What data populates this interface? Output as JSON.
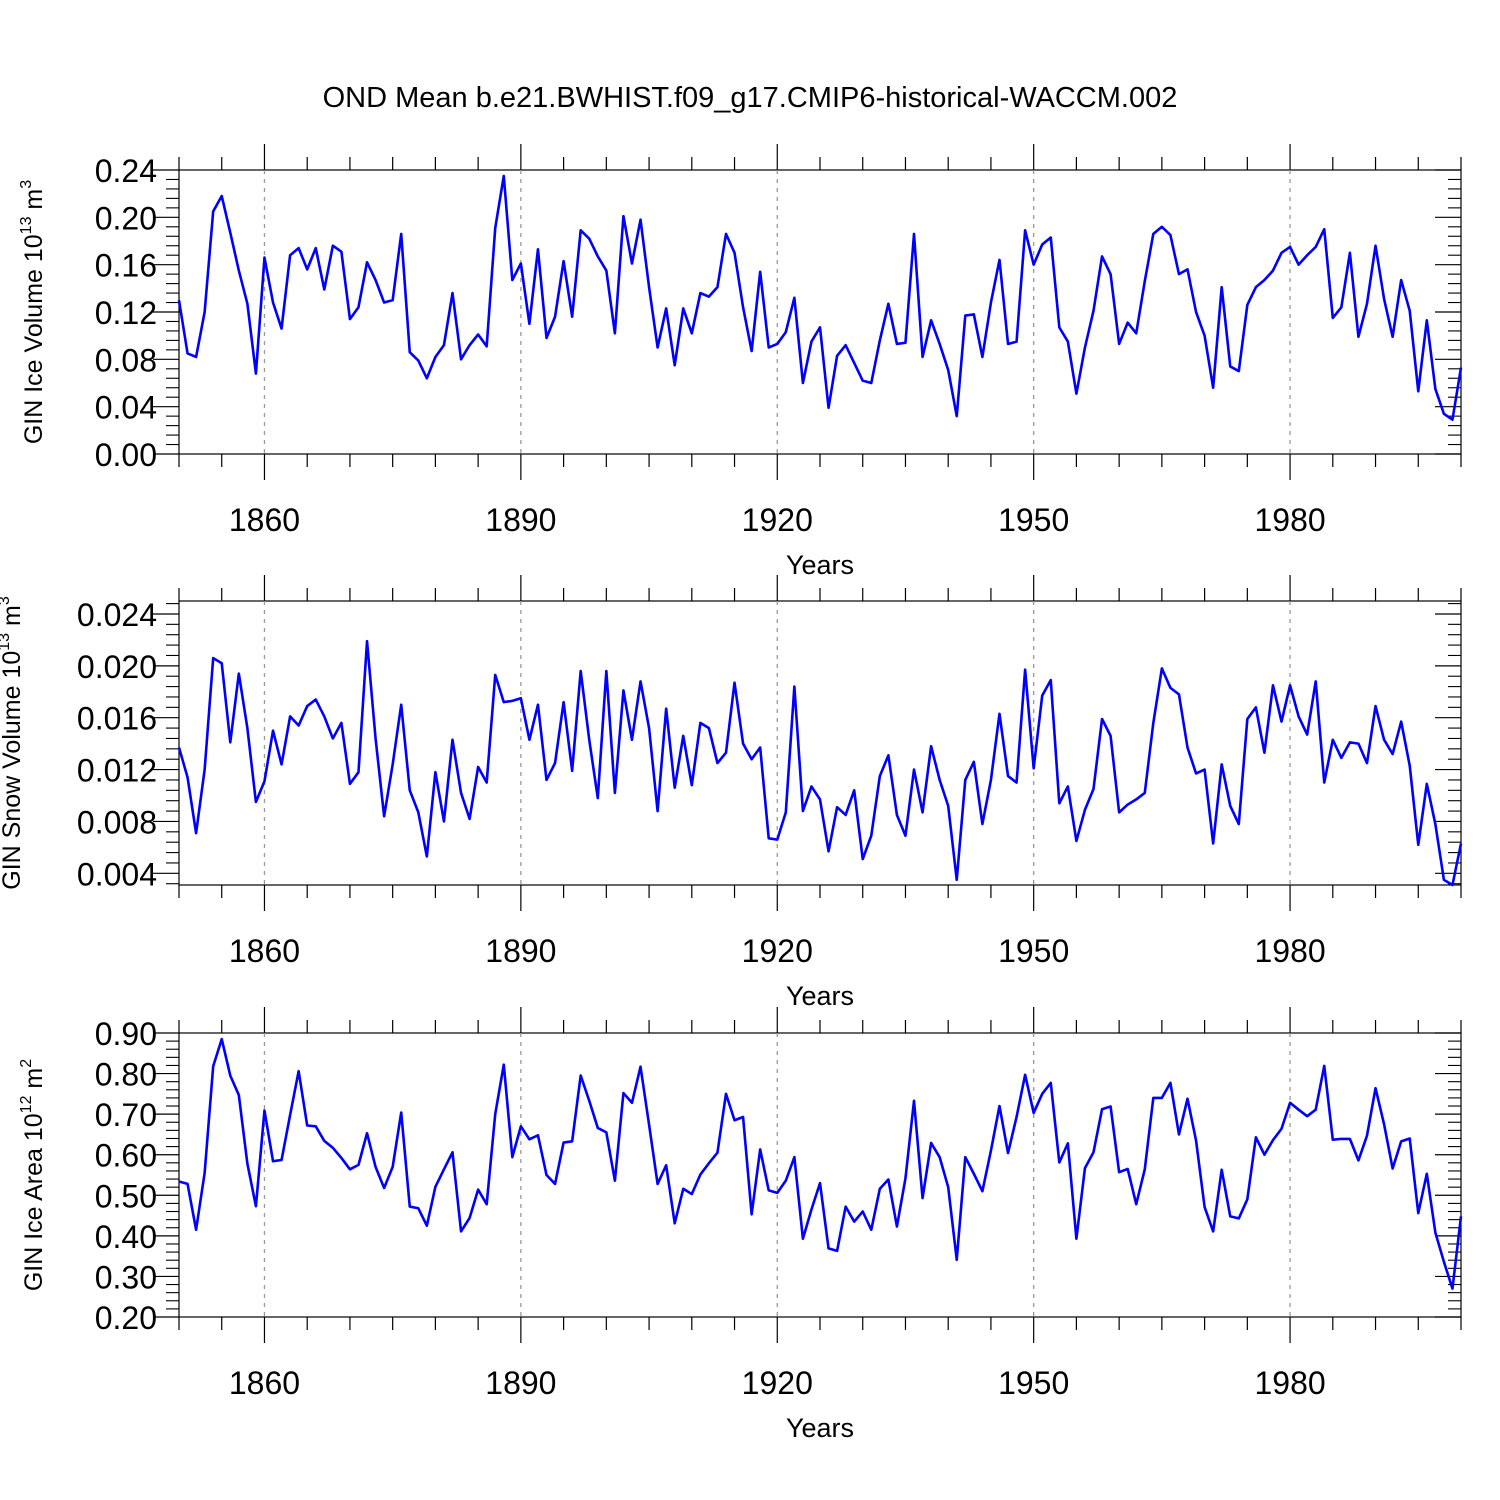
{
  "figure_title": "OND Mean b.e21.BWHIST.f09_g17.CMIP6-historical-WACCM.002",
  "colors": {
    "series": "#0000ff",
    "axes": "#000000",
    "grid": "#999999",
    "background": "#ffffff"
  },
  "chart_data": [
    {
      "type": "line",
      "title": "",
      "xlabel": "Years",
      "ylabel": {
        "text": "GIN Ice Volume 10",
        "exponent": "13",
        "unit": " m",
        "unit_exponent": "3"
      },
      "x_start": 1850,
      "x_step": 1,
      "xlim": [
        1850,
        2000
      ],
      "xticks": [
        1860,
        1890,
        1920,
        1950,
        1980
      ],
      "ylim": [
        0.0,
        0.24
      ],
      "yticks": [
        "0.00",
        "0.04",
        "0.08",
        "0.12",
        "0.16",
        "0.20",
        "0.24"
      ],
      "ytick_values": [
        0.0,
        0.04,
        0.08,
        0.12,
        0.16,
        0.2,
        0.24
      ],
      "series": [
        {
          "name": "GIN Ice Volume",
          "values": [
            0.13,
            0.085,
            0.082,
            0.12,
            0.205,
            0.218,
            0.187,
            0.155,
            0.127,
            0.068,
            0.166,
            0.128,
            0.106,
            0.168,
            0.174,
            0.156,
            0.174,
            0.139,
            0.176,
            0.171,
            0.114,
            0.124,
            0.162,
            0.147,
            0.128,
            0.13,
            0.186,
            0.086,
            0.079,
            0.064,
            0.082,
            0.092,
            0.136,
            0.08,
            0.092,
            0.101,
            0.091,
            0.191,
            0.235,
            0.147,
            0.161,
            0.11,
            0.173,
            0.098,
            0.116,
            0.163,
            0.116,
            0.189,
            0.182,
            0.167,
            0.155,
            0.102,
            0.201,
            0.161,
            0.198,
            0.141,
            0.09,
            0.123,
            0.075,
            0.123,
            0.102,
            0.136,
            0.133,
            0.141,
            0.186,
            0.17,
            0.124,
            0.087,
            0.154,
            0.09,
            0.093,
            0.103,
            0.132,
            0.06,
            0.095,
            0.107,
            0.039,
            0.083,
            0.092,
            0.077,
            0.062,
            0.06,
            0.096,
            0.127,
            0.093,
            0.094,
            0.186,
            0.082,
            0.113,
            0.093,
            0.071,
            0.032,
            0.117,
            0.118,
            0.082,
            0.128,
            0.164,
            0.093,
            0.095,
            0.189,
            0.16,
            0.177,
            0.183,
            0.107,
            0.095,
            0.051,
            0.09,
            0.121,
            0.167,
            0.152,
            0.093,
            0.111,
            0.102,
            0.146,
            0.186,
            0.192,
            0.185,
            0.152,
            0.156,
            0.12,
            0.1,
            0.056,
            0.141,
            0.074,
            0.07,
            0.126,
            0.141,
            0.147,
            0.155,
            0.17,
            0.175,
            0.16,
            0.168,
            0.175,
            0.19,
            0.115,
            0.124,
            0.17,
            0.099,
            0.127,
            0.176,
            0.131,
            0.099,
            0.147,
            0.121,
            0.053,
            0.113,
            0.055,
            0.034,
            0.029,
            0.073
          ]
        }
      ]
    },
    {
      "type": "line",
      "title": "",
      "xlabel": "Years",
      "ylabel": {
        "text": "GIN Snow Volume 10",
        "exponent": "13",
        "unit": " m",
        "unit_exponent": "3"
      },
      "x_start": 1850,
      "x_step": 1,
      "xlim": [
        1850,
        2000
      ],
      "xticks": [
        1860,
        1890,
        1920,
        1950,
        1980
      ],
      "ylim": [
        0.0031,
        0.025
      ],
      "yticks": [
        "0.004",
        "0.008",
        "0.012",
        "0.016",
        "0.020",
        "0.024"
      ],
      "ytick_values": [
        0.004,
        0.008,
        0.012,
        0.016,
        0.02,
        0.024
      ],
      "series": [
        {
          "name": "GIN Snow Volume",
          "values": [
            0.0137,
            0.0114,
            0.0071,
            0.012,
            0.0206,
            0.0202,
            0.0141,
            0.0194,
            0.0152,
            0.0095,
            0.0111,
            0.015,
            0.0124,
            0.0161,
            0.0154,
            0.0169,
            0.0174,
            0.0161,
            0.0144,
            0.0156,
            0.0109,
            0.0118,
            0.0219,
            0.0144,
            0.0084,
            0.0124,
            0.017,
            0.0104,
            0.0087,
            0.0053,
            0.0118,
            0.008,
            0.0143,
            0.0102,
            0.0082,
            0.0122,
            0.011,
            0.0193,
            0.0172,
            0.0173,
            0.0175,
            0.0143,
            0.017,
            0.0112,
            0.0125,
            0.0172,
            0.0119,
            0.0196,
            0.0143,
            0.0098,
            0.0196,
            0.0102,
            0.0181,
            0.0143,
            0.0188,
            0.0152,
            0.0088,
            0.0167,
            0.0106,
            0.0146,
            0.0108,
            0.0156,
            0.0152,
            0.0125,
            0.0133,
            0.0187,
            0.014,
            0.0128,
            0.0137,
            0.0067,
            0.0066,
            0.0087,
            0.0184,
            0.0088,
            0.0107,
            0.0097,
            0.0057,
            0.0091,
            0.0085,
            0.0104,
            0.0051,
            0.0069,
            0.0115,
            0.0131,
            0.0085,
            0.0069,
            0.012,
            0.0087,
            0.0138,
            0.0112,
            0.0092,
            0.0035,
            0.0112,
            0.0126,
            0.0078,
            0.0112,
            0.0163,
            0.0115,
            0.011,
            0.0197,
            0.0121,
            0.0177,
            0.0189,
            0.0094,
            0.0107,
            0.0065,
            0.0089,
            0.0105,
            0.0159,
            0.0146,
            0.0087,
            0.0093,
            0.0097,
            0.0102,
            0.0156,
            0.0198,
            0.0183,
            0.0178,
            0.0137,
            0.0117,
            0.012,
            0.0063,
            0.0124,
            0.0092,
            0.0078,
            0.0159,
            0.0168,
            0.0133,
            0.0185,
            0.0157,
            0.0185,
            0.0161,
            0.0147,
            0.0188,
            0.011,
            0.0143,
            0.0129,
            0.0141,
            0.014,
            0.0125,
            0.0169,
            0.0143,
            0.0132,
            0.0157,
            0.0123,
            0.0062,
            0.0109,
            0.0078,
            0.0035,
            0.0031,
            0.0063
          ]
        }
      ]
    },
    {
      "type": "line",
      "title": "",
      "xlabel": "Years",
      "ylabel": {
        "text": "GIN Ice Area 10",
        "exponent": "12",
        "unit": " m",
        "unit_exponent": "2"
      },
      "x_start": 1850,
      "x_step": 1,
      "xlim": [
        1850,
        2000
      ],
      "xticks": [
        1860,
        1890,
        1920,
        1950,
        1980
      ],
      "ylim": [
        0.2,
        0.9
      ],
      "yticks": [
        "0.20",
        "0.30",
        "0.40",
        "0.50",
        "0.60",
        "0.70",
        "0.80",
        "0.90"
      ],
      "ytick_values": [
        0.2,
        0.3,
        0.4,
        0.5,
        0.6,
        0.7,
        0.8,
        0.9
      ],
      "series": [
        {
          "name": "GIN Ice Area",
          "values": [
            0.534,
            0.528,
            0.415,
            0.555,
            0.818,
            0.885,
            0.795,
            0.747,
            0.578,
            0.473,
            0.709,
            0.584,
            0.587,
            0.698,
            0.806,
            0.672,
            0.67,
            0.634,
            0.617,
            0.592,
            0.564,
            0.575,
            0.653,
            0.57,
            0.518,
            0.57,
            0.704,
            0.472,
            0.468,
            0.425,
            0.521,
            0.564,
            0.606,
            0.411,
            0.444,
            0.514,
            0.478,
            0.7,
            0.822,
            0.594,
            0.67,
            0.638,
            0.648,
            0.55,
            0.528,
            0.63,
            0.633,
            0.795,
            0.733,
            0.666,
            0.655,
            0.536,
            0.752,
            0.728,
            0.817,
            0.674,
            0.528,
            0.574,
            0.431,
            0.516,
            0.503,
            0.551,
            0.579,
            0.605,
            0.75,
            0.685,
            0.693,
            0.453,
            0.613,
            0.512,
            0.506,
            0.536,
            0.594,
            0.393,
            0.465,
            0.53,
            0.369,
            0.363,
            0.472,
            0.435,
            0.46,
            0.415,
            0.516,
            0.539,
            0.423,
            0.542,
            0.733,
            0.493,
            0.629,
            0.594,
            0.52,
            0.341,
            0.594,
            0.553,
            0.51,
            0.61,
            0.72,
            0.604,
            0.693,
            0.797,
            0.703,
            0.75,
            0.777,
            0.581,
            0.628,
            0.393,
            0.567,
            0.606,
            0.712,
            0.719,
            0.557,
            0.565,
            0.478,
            0.564,
            0.74,
            0.74,
            0.777,
            0.65,
            0.738,
            0.635,
            0.471,
            0.411,
            0.563,
            0.448,
            0.443,
            0.49,
            0.643,
            0.6,
            0.636,
            0.664,
            0.728,
            0.711,
            0.695,
            0.711,
            0.819,
            0.637,
            0.639,
            0.639,
            0.586,
            0.647,
            0.764,
            0.675,
            0.566,
            0.633,
            0.64,
            0.456,
            0.553,
            0.408,
            0.336,
            0.27,
            0.448
          ]
        }
      ]
    }
  ]
}
